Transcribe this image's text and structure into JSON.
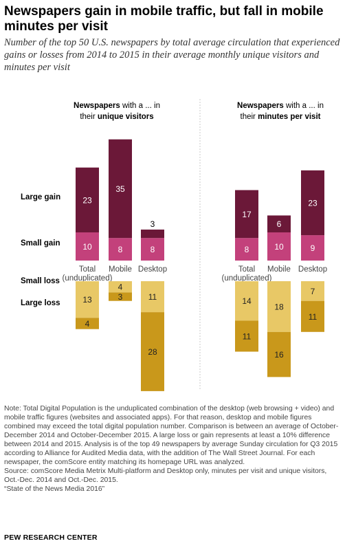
{
  "title": "Newspapers gain in mobile traffic, but fall in mobile minutes per visit",
  "subtitle": "Number of the top 50 U.S. newspapers by total average circulation that experienced gains or losses from 2014 to 2015 in their average monthly unique visitors and minutes per visit",
  "row_labels": {
    "large_gain": "Large gain",
    "small_gain": "Small gain",
    "small_loss": "Small loss",
    "large_loss": "Large loss"
  },
  "colors": {
    "large_gain": "#6b1838",
    "small_gain": "#c3417b",
    "small_loss": "#e8c866",
    "large_loss": "#c9981b",
    "divider": "#c8c8c8"
  },
  "chart_data": [
    {
      "type": "bar",
      "title_prefix": "Newspapers",
      "title_mid": " with a ... in",
      "title_line2_prefix": "their ",
      "title_line2_bold": "unique visitors",
      "categories": [
        "Total (unduplicated)",
        "Mobile",
        "Desktop"
      ],
      "category_lines": [
        [
          "Total",
          "(unduplicated)"
        ],
        [
          "Mobile"
        ],
        [
          "Desktop"
        ]
      ],
      "series": [
        {
          "name": "Large gain",
          "values": [
            23,
            35,
            3
          ]
        },
        {
          "name": "Small gain",
          "values": [
            10,
            8,
            8
          ]
        },
        {
          "name": "Small loss",
          "values": [
            13,
            4,
            11
          ]
        },
        {
          "name": "Large loss",
          "values": [
            4,
            3,
            28
          ]
        }
      ]
    },
    {
      "type": "bar",
      "title_prefix": "Newspapers",
      "title_mid": " with a ... in",
      "title_line2_prefix": "their ",
      "title_line2_bold": "minutes per visit",
      "categories": [
        "Total (unduplicated)",
        "Mobile",
        "Desktop"
      ],
      "category_lines": [
        [
          "Total",
          "(unduplicated)"
        ],
        [
          "Mobile"
        ],
        [
          "Desktop"
        ]
      ],
      "series": [
        {
          "name": "Large gain",
          "values": [
            17,
            6,
            23
          ]
        },
        {
          "name": "Small gain",
          "values": [
            8,
            10,
            9
          ]
        },
        {
          "name": "Small loss",
          "values": [
            14,
            18,
            7
          ]
        },
        {
          "name": "Large loss",
          "values": [
            11,
            16,
            11
          ]
        }
      ]
    }
  ],
  "notes": {
    "note": "Note: Total Digital Population is the unduplicated combination of the desktop (web browsing + video) and mobile traffic figures (websites and associated apps). For that reason, desktop and mobile figures combined may exceed the total digital population number. Comparison is between an average of October-December 2014 and October-December 2015. A large loss or gain represents at least a 10% difference between 2014 and 2015. Analysis is of the top 49 newspapers by average Sunday circulation for Q3 2015 according to Alliance for Audited Media data, with the addition of The Wall Street Journal. For each newspaper, the comScore entity matching its homepage URL was analyzed.",
    "source": "Source: comScore Media Metrix Multi-platform and Desktop only, minutes per visit and unique visitors, Oct.-Dec. 2014 and Oct.-Dec. 2015.",
    "report": "“State of the News Media 2016”"
  },
  "brand": "PEW RESEARCH CENTER"
}
